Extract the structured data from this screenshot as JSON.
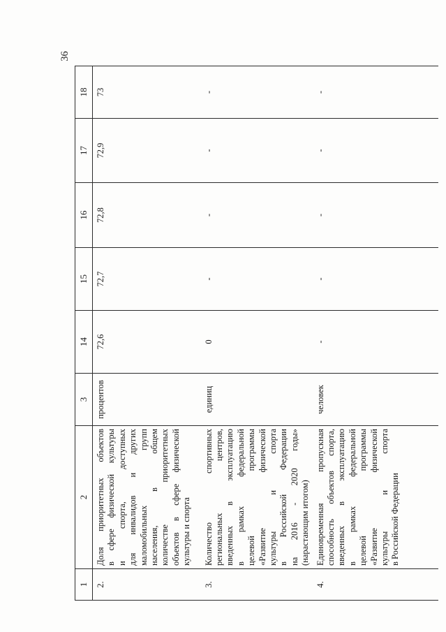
{
  "page": {
    "number": "36"
  },
  "table": {
    "header": [
      "1",
      "2",
      "3",
      "14",
      "15",
      "16",
      "17",
      "18"
    ],
    "rows": [
      {
        "num": "2.",
        "name_lines": [
          "Доля приоритетных объектов",
          "в сфере физической культуры",
          "и спорта, доступных",
          "для инвалидов и других",
          "маломобильных групп",
          "населения, в общем",
          "количестве приоритетных",
          "объектов в сфере физической",
          "культуры и спорта"
        ],
        "unit": "процентов",
        "values": [
          "72,6",
          "72,7",
          "72,8",
          "72,9",
          "73"
        ]
      },
      {
        "num": "3.",
        "name_lines": [
          "Количество спортивных",
          "региональных центров,",
          "введенных в эксплуатацию",
          "в рамках федеральной",
          "целевой программы",
          "«Развитие физической",
          "культуры и спорта",
          "в Российской Федерации",
          "на 2016 - 2020 годы»",
          "(нарастающим итогом)"
        ],
        "unit": "единиц",
        "values": [
          "0",
          "-",
          "-",
          "-",
          "-"
        ]
      },
      {
        "num": "4.",
        "name_lines": [
          "Единовременная пропускная",
          "способность объектов спорта,",
          "введенных в эксплуатацию",
          "в рамках федеральной",
          "целевой программы",
          "«Развитие физической",
          "культуры и спорта",
          "в Российской Федерации"
        ],
        "unit": "человек",
        "values": [
          "-",
          "-",
          "-",
          "-",
          "-"
        ]
      }
    ]
  }
}
